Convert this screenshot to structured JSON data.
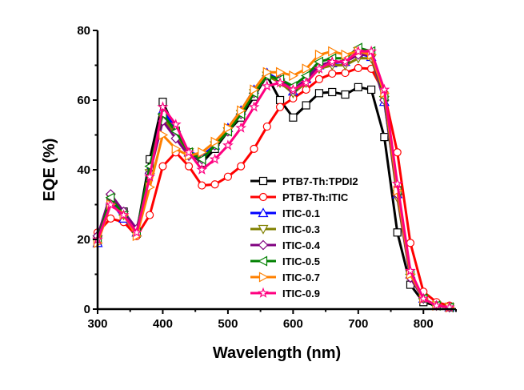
{
  "chart_data": {
    "type": "line",
    "xlabel": "Wavelength (nm)",
    "ylabel": "EQE (%)",
    "xlim": [
      300,
      850
    ],
    "ylim": [
      0,
      80
    ],
    "xticks": [
      300,
      400,
      500,
      600,
      700,
      800
    ],
    "yticks": [
      0,
      20,
      40,
      60,
      80
    ],
    "grid": false,
    "legend_position": "center-bottom",
    "x": [
      300,
      320,
      340,
      360,
      380,
      400,
      420,
      440,
      460,
      480,
      500,
      520,
      540,
      560,
      580,
      600,
      620,
      640,
      660,
      680,
      700,
      720,
      740,
      760,
      780,
      800,
      820,
      840
    ],
    "series": [
      {
        "name": "PTB7-Th:TPDI2",
        "color": "#000000",
        "marker": "square",
        "values": [
          19,
          31,
          28,
          22,
          43,
          59.5,
          51,
          45,
          42,
          46,
          51,
          55,
          61,
          67,
          60,
          55,
          58.5,
          62,
          62.3,
          61.6,
          63.7,
          63,
          49.4,
          22,
          7,
          2,
          1,
          0.5
        ]
      },
      {
        "name": "PTB7-Th:ITIC",
        "color": "#ff0000",
        "marker": "circle",
        "values": [
          22,
          26,
          25,
          21,
          27,
          41,
          45,
          41,
          35.5,
          35.8,
          38,
          41,
          46,
          52.4,
          58,
          60.5,
          63,
          66,
          67.6,
          67.8,
          69.2,
          69,
          62,
          45,
          19,
          5,
          2,
          1
        ]
      },
      {
        "name": "ITIC-0.1",
        "color": "#0000ff",
        "marker": "triangle-up",
        "values": [
          19,
          31,
          26,
          22,
          40,
          57,
          52,
          45,
          44,
          47,
          52,
          57,
          63,
          67.8,
          65.7,
          62.5,
          66,
          70,
          70.6,
          71,
          73.4,
          72.4,
          59.5,
          33,
          10,
          3,
          1,
          0.5
        ]
      },
      {
        "name": "ITIC-0.3",
        "color": "#808000",
        "marker": "triangle-down",
        "values": [
          20,
          32,
          27,
          22,
          39,
          55,
          50,
          45,
          43,
          47,
          51,
          56,
          62,
          67,
          65,
          62,
          65,
          69,
          70,
          70,
          72,
          72,
          60,
          32,
          9,
          3,
          1,
          0.5
        ]
      },
      {
        "name": "ITIC-0.4",
        "color": "#800080",
        "marker": "diamond",
        "values": [
          21,
          33,
          28,
          23,
          39,
          54,
          49,
          44,
          43,
          47,
          51,
          56,
          62,
          67,
          66,
          63,
          66,
          70,
          71,
          71,
          73,
          73,
          60,
          33,
          9,
          3,
          1,
          0.5
        ]
      },
      {
        "name": "ITIC-0.5",
        "color": "#008000",
        "marker": "triangle-left",
        "values": [
          20,
          32,
          27,
          22,
          41,
          56,
          51,
          45,
          43,
          47,
          51,
          56,
          62,
          67,
          66,
          64,
          67,
          71,
          72,
          72,
          75,
          74,
          61,
          34,
          10,
          3,
          1,
          0.5
        ]
      },
      {
        "name": "ITIC-0.7",
        "color": "#ff8000",
        "marker": "triangle-right",
        "values": [
          19,
          30,
          27,
          21,
          35,
          50,
          46,
          44,
          45,
          48,
          52,
          57,
          63,
          68,
          68,
          67,
          69,
          73,
          74,
          73,
          74,
          73,
          62,
          34,
          10,
          3,
          1,
          0.5
        ]
      },
      {
        "name": "ITIC-0.9",
        "color": "#ff0080",
        "marker": "star",
        "values": [
          20,
          30,
          27,
          22,
          38,
          58,
          53,
          45,
          40,
          43,
          47,
          52,
          58,
          64,
          65,
          63,
          65,
          69,
          71,
          71,
          74,
          74,
          63,
          36,
          11,
          3,
          1,
          0.5
        ]
      }
    ]
  }
}
